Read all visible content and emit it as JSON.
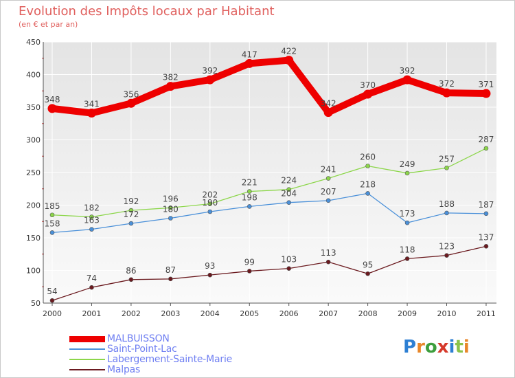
{
  "title": "Evolution des Impôts locaux par Habitant",
  "subtitle": "(en € et par an)",
  "brand": "Proxiti",
  "chart_data": {
    "type": "line",
    "title": "Evolution des Impôts locaux par Habitant",
    "subtitle": "(en € et par an)",
    "xlabel": "",
    "ylabel": "",
    "ylim": [
      50,
      450
    ],
    "yticks": [
      50,
      100,
      150,
      200,
      250,
      300,
      350,
      400,
      450
    ],
    "categories": [
      "2000",
      "2001",
      "2002",
      "2003",
      "2004",
      "2005",
      "2006",
      "2007",
      "2008",
      "2009",
      "2010",
      "2011"
    ],
    "legend_position": "bottom-left",
    "series": [
      {
        "name": "MALBUISSON",
        "color": "#ee0000",
        "values": [
          348,
          341,
          356,
          382,
          392,
          417,
          422,
          342,
          370,
          392,
          372,
          371
        ]
      },
      {
        "name": "Saint-Point-Lac",
        "color": "#4a90d9",
        "values": [
          158,
          163,
          172,
          180,
          190,
          198,
          204,
          207,
          218,
          173,
          188,
          187
        ]
      },
      {
        "name": "Labergement-Sainte-Marie",
        "color": "#8cd64a",
        "values": [
          185,
          182,
          192,
          196,
          202,
          221,
          224,
          241,
          260,
          249,
          257,
          287
        ]
      },
      {
        "name": "Malpas",
        "color": "#6b1a1f",
        "values": [
          54,
          74,
          86,
          87,
          93,
          99,
          103,
          113,
          95,
          118,
          123,
          137
        ]
      }
    ]
  }
}
